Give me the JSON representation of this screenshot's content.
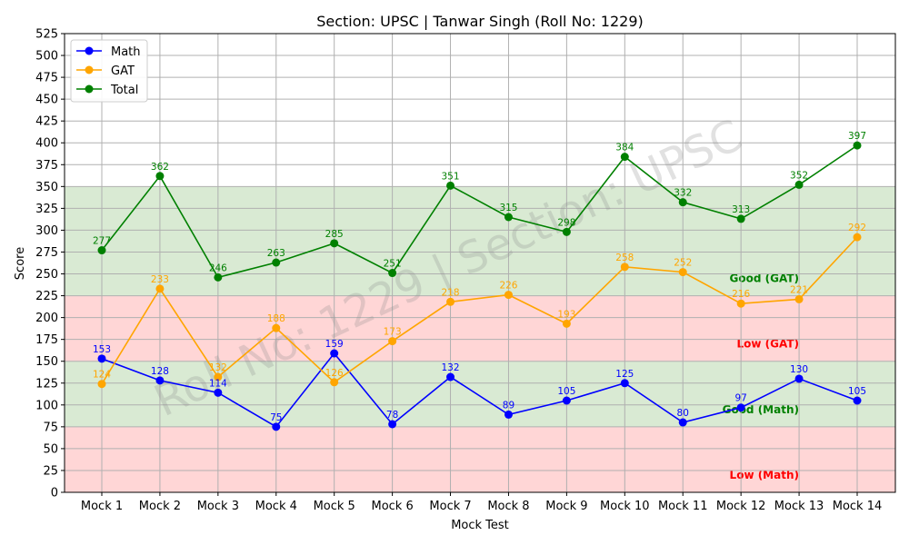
{
  "chart_data": {
    "type": "line",
    "title": "Section: UPSC | Tanwar Singh (Roll No: 1229)",
    "xlabel": "Mock Test",
    "ylabel": "Score",
    "categories": [
      "Mock 1",
      "Mock 2",
      "Mock 3",
      "Mock 4",
      "Mock 5",
      "Mock 6",
      "Mock 7",
      "Mock 8",
      "Mock 9",
      "Mock 10",
      "Mock 11",
      "Mock 12",
      "Mock 13",
      "Mock 14"
    ],
    "ylim": [
      0,
      525
    ],
    "yticks": [
      "0",
      "25",
      "50",
      "75",
      "100",
      "125",
      "150",
      "175",
      "200",
      "225",
      "250",
      "275",
      "300",
      "325",
      "350",
      "375",
      "400",
      "425",
      "450",
      "475",
      "500",
      "525"
    ],
    "grid": true,
    "legend_position": "top-left",
    "series": [
      {
        "name": "Math",
        "color": "#0000ff",
        "values": [
          153,
          128,
          114,
          75,
          159,
          78,
          132,
          89,
          105,
          125,
          80,
          97,
          130,
          105
        ]
      },
      {
        "name": "GAT",
        "color": "#ffa500",
        "values": [
          124,
          233,
          132,
          188,
          126,
          173,
          218,
          226,
          193,
          258,
          252,
          216,
          221,
          292
        ]
      },
      {
        "name": "Total",
        "color": "#008000",
        "values": [
          277,
          362,
          246,
          263,
          285,
          251,
          351,
          315,
          298,
          384,
          332,
          313,
          352,
          397
        ]
      }
    ],
    "bands": [
      {
        "label": "Low (Math)",
        "range": [
          0,
          75
        ],
        "fill": "#ffd6d6",
        "text_color": "#ff0000"
      },
      {
        "label": "Good (Math)",
        "range": [
          75,
          150
        ],
        "fill": "#d9ead3",
        "text_color": "#008000"
      },
      {
        "label": "Low (GAT)",
        "range": [
          150,
          225
        ],
        "fill": "#ffd6d6",
        "text_color": "#ff0000"
      },
      {
        "label": "Good (GAT)",
        "range": [
          225,
          350
        ],
        "fill": "#d9ead3",
        "text_color": "#008000"
      }
    ],
    "watermark": "Roll No: 1229 | Section: UPSC"
  }
}
